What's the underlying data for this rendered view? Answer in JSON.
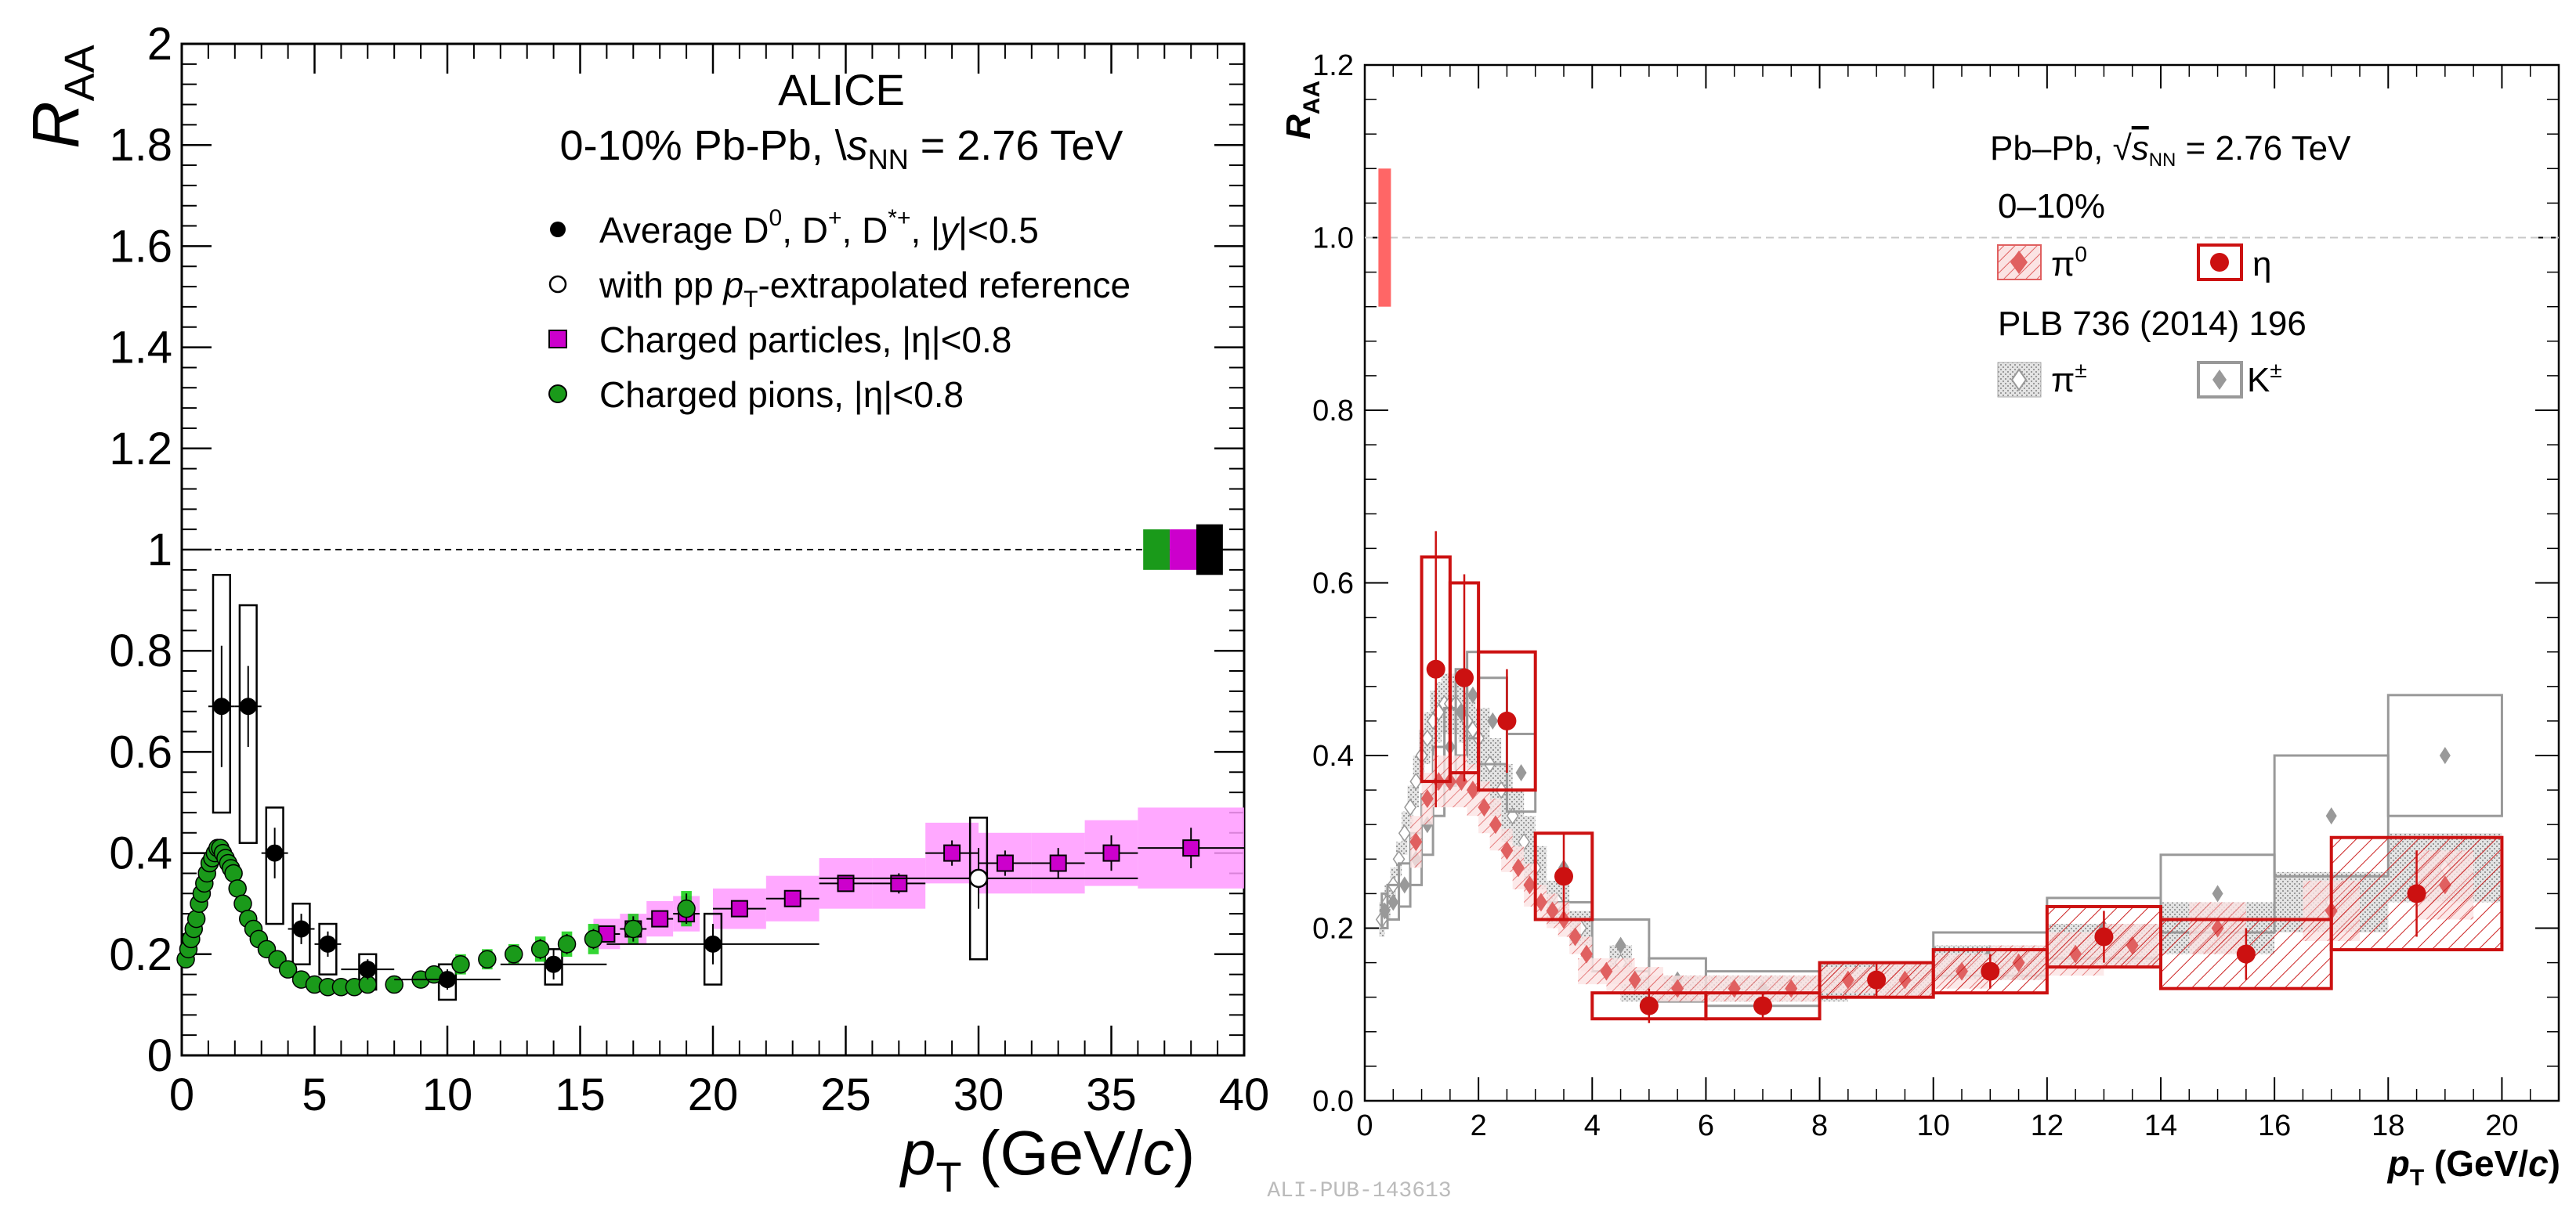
{
  "figure_label": "ALI-PUB-143613",
  "chart_data": [
    {
      "type": "scatter",
      "title": "ALICE",
      "subtitle_prefix": "0-10% Pb-Pb, ",
      "subtitle_energy": " = 2.76 TeV",
      "xlabel_unit": " (GeV/c)",
      "ylim": [
        0,
        2
      ],
      "xlim": [
        0,
        40
      ],
      "xticks": [
        0,
        5,
        10,
        15,
        20,
        25,
        30,
        35,
        40
      ],
      "yticks": [
        0,
        0.2,
        0.4,
        0.6,
        0.8,
        1,
        1.2,
        1.4,
        1.6,
        1.8,
        2
      ],
      "ytick_labels": [
        "0",
        "0.2",
        "0.4",
        "0.6",
        "0.8",
        "1",
        "1.2",
        "1.4",
        "1.6",
        "1.8",
        "2"
      ],
      "reference_line": 1,
      "legend_placement": "top-right",
      "legend": {
        "d_mesons": "Average D, D, D, |y|<0.5",
        "d_mesons_extrap": "with pp p-extrapolated reference",
        "charged_particles": "Charged particles, |η|<0.8",
        "charged_pions": "Charged pions, |η|<0.8"
      },
      "colors": {
        "d_mesons": "#000000",
        "charged_particles": "#cc00cc",
        "charged_particles_band": "#ff99ff",
        "charged_pions": "#1a9a1a",
        "charged_pions_box": "#00cc00"
      },
      "series": [
        {
          "name": "Average D0, D+, D*+, |y|<0.5",
          "x": [
            1.5,
            2.5,
            3.5,
            4.5,
            5.5,
            7,
            10,
            14,
            20
          ],
          "y": [
            0.69,
            0.69,
            0.4,
            0.25,
            0.22,
            0.17,
            0.15,
            0.18,
            0.22
          ],
          "xerr": [
            0.5,
            0.5,
            0.5,
            0.5,
            0.5,
            1,
            2,
            2,
            4
          ],
          "yerr": [
            0.12,
            0.08,
            0.05,
            0.03,
            0.025,
            0.02,
            0.02,
            0.03,
            0.04
          ],
          "syst_low": [
            0.48,
            0.42,
            0.26,
            0.18,
            0.16,
            0.13,
            0.11,
            0.14,
            0.14
          ],
          "syst_high": [
            0.95,
            0.89,
            0.49,
            0.3,
            0.26,
            0.2,
            0.18,
            0.21,
            0.28
          ]
        },
        {
          "name": "with pp pT-extrapolated reference",
          "x": [
            30
          ],
          "y": [
            0.35
          ],
          "xerr": [
            6
          ],
          "yerr": [
            0.06
          ],
          "syst_low": [
            0.19
          ],
          "syst_high": [
            0.47
          ]
        },
        {
          "name": "Charged particles, |η|<0.8",
          "x": [
            16,
            17,
            18,
            19,
            21,
            23,
            25,
            27,
            29,
            31,
            33,
            35,
            38
          ],
          "y": [
            0.24,
            0.25,
            0.27,
            0.28,
            0.29,
            0.31,
            0.34,
            0.34,
            0.4,
            0.38,
            0.38,
            0.4,
            0.41
          ],
          "xerr": [
            0.5,
            0.5,
            0.5,
            0.5,
            1,
            1,
            1,
            1,
            1,
            1,
            1,
            1,
            2
          ],
          "yerr": [
            0.01,
            0.01,
            0.01,
            0.01,
            0.01,
            0.015,
            0.015,
            0.02,
            0.025,
            0.025,
            0.03,
            0.035,
            0.04
          ],
          "band_halfwidth": [
            0.03,
            0.03,
            0.035,
            0.035,
            0.04,
            0.045,
            0.05,
            0.05,
            0.06,
            0.06,
            0.06,
            0.065,
            0.08
          ]
        },
        {
          "name": "Charged pions, |η|<0.8",
          "x": [
            0.15,
            0.25,
            0.35,
            0.45,
            0.55,
            0.65,
            0.75,
            0.85,
            0.95,
            1.05,
            1.15,
            1.25,
            1.35,
            1.45,
            1.55,
            1.65,
            1.75,
            1.85,
            1.95,
            2.1,
            2.3,
            2.5,
            2.7,
            2.9,
            3.2,
            3.6,
            4.0,
            4.5,
            5.0,
            5.5,
            6.0,
            6.5,
            7.0,
            8.0,
            9.0,
            9.5,
            10.5,
            11.5,
            12.5,
            13.5,
            14.5,
            15.5,
            17.0,
            19.0
          ],
          "y": [
            0.19,
            0.21,
            0.23,
            0.25,
            0.27,
            0.3,
            0.32,
            0.34,
            0.36,
            0.38,
            0.39,
            0.4,
            0.41,
            0.41,
            0.4,
            0.39,
            0.38,
            0.37,
            0.36,
            0.33,
            0.3,
            0.27,
            0.25,
            0.23,
            0.21,
            0.19,
            0.17,
            0.15,
            0.14,
            0.135,
            0.135,
            0.135,
            0.14,
            0.14,
            0.15,
            0.16,
            0.18,
            0.19,
            0.2,
            0.21,
            0.22,
            0.23,
            0.25,
            0.29
          ],
          "yerr": [
            0.005,
            0.005,
            0.005,
            0.005,
            0.005,
            0.005,
            0.005,
            0.005,
            0.005,
            0.005,
            0.005,
            0.005,
            0.005,
            0.005,
            0.005,
            0.005,
            0.005,
            0.005,
            0.005,
            0.005,
            0.005,
            0.005,
            0.005,
            0.005,
            0.005,
            0.005,
            0.005,
            0.005,
            0.005,
            0.005,
            0.005,
            0.005,
            0.005,
            0.01,
            0.01,
            0.01,
            0.015,
            0.015,
            0.015,
            0.02,
            0.02,
            0.02,
            0.025,
            0.03
          ],
          "syst_halfwidth": [
            0.01,
            0.01,
            0.01,
            0.01,
            0.012,
            0.012,
            0.013,
            0.013,
            0.014,
            0.014,
            0.015,
            0.015,
            0.015,
            0.015,
            0.015,
            0.015,
            0.015,
            0.015,
            0.014,
            0.013,
            0.012,
            0.011,
            0.01,
            0.01,
            0.01,
            0.01,
            0.01,
            0.01,
            0.01,
            0.01,
            0.01,
            0.01,
            0.01,
            0.015,
            0.015,
            0.015,
            0.02,
            0.02,
            0.02,
            0.025,
            0.025,
            0.03,
            0.03,
            0.035
          ]
        }
      ],
      "normalization_boxes": [
        {
          "color": "#1a9a1a",
          "halfheight": 0.04
        },
        {
          "color": "#cc00cc",
          "halfheight": 0.04
        },
        {
          "color": "#000000",
          "halfheight": 0.05
        }
      ]
    },
    {
      "type": "scatter",
      "xlabel_unit": " (GeV/",
      "xlim": [
        0,
        21
      ],
      "ylim": [
        0,
        1.2
      ],
      "xticks": [
        0,
        2,
        4,
        6,
        8,
        10,
        12,
        14,
        16,
        18,
        20
      ],
      "yticks": [
        0,
        0.2,
        0.4,
        0.6,
        0.8,
        1.0,
        1.2
      ],
      "ytick_labels": [
        "0.0",
        "0.2",
        "0.4",
        "0.6",
        "0.8",
        "1.0",
        "1.2"
      ],
      "reference_line": 1.0,
      "legend_placement": "top-right",
      "legend": {
        "system_prefix": "Pb–Pb, ",
        "system_energy": " = 2.76 TeV",
        "centrality": "0–10%",
        "pi0": "π",
        "eta": "η",
        "reference": "PLB 736 (2014) 196",
        "pipm": "π",
        "kpm": "K"
      },
      "colors": {
        "eta": "#cc1111",
        "pi0": "#e06060",
        "reference": "#999999",
        "norm": "#ff6666"
      },
      "normalization_box": {
        "x": 0.35,
        "low": 0.92,
        "high": 1.08
      },
      "series": [
        {
          "name": "η",
          "x": [
            1.25,
            1.75,
            2.5,
            3.5,
            5,
            7,
            9,
            11,
            13,
            15.5,
            18.5
          ],
          "y": [
            0.5,
            0.49,
            0.44,
            0.26,
            0.11,
            0.11,
            0.14,
            0.15,
            0.19,
            0.17,
            0.24
          ],
          "xerr": [
            0.25,
            0.25,
            0.5,
            0.5,
            1,
            1,
            1,
            1,
            1,
            1.5,
            1.5
          ],
          "yerr": [
            0.16,
            0.12,
            0.06,
            0.05,
            0.02,
            0.015,
            0.02,
            0.02,
            0.03,
            0.03,
            0.05
          ],
          "syst_halfwidth": [
            0.13,
            0.11,
            0.08,
            0.05,
            0.015,
            0.015,
            0.02,
            0.025,
            0.035,
            0.04,
            0.065
          ]
        },
        {
          "name": "π0",
          "x": [
            0.9,
            1.1,
            1.3,
            1.5,
            1.7,
            1.9,
            2.1,
            2.3,
            2.5,
            2.7,
            2.9,
            3.1,
            3.3,
            3.5,
            3.7,
            3.9,
            4.25,
            4.75,
            5.5,
            6.5,
            7.5,
            8.5,
            9.5,
            10.5,
            11.5,
            12.5,
            13.5,
            15,
            17,
            19
          ],
          "y": [
            0.3,
            0.35,
            0.37,
            0.37,
            0.37,
            0.36,
            0.34,
            0.32,
            0.29,
            0.27,
            0.25,
            0.23,
            0.22,
            0.21,
            0.19,
            0.17,
            0.15,
            0.14,
            0.13,
            0.13,
            0.13,
            0.14,
            0.14,
            0.15,
            0.16,
            0.17,
            0.18,
            0.2,
            0.22,
            0.25
          ],
          "syst_halfwidth": [
            0.03,
            0.03,
            0.03,
            0.03,
            0.03,
            0.03,
            0.03,
            0.03,
            0.025,
            0.025,
            0.025,
            0.02,
            0.02,
            0.02,
            0.02,
            0.02,
            0.015,
            0.015,
            0.015,
            0.015,
            0.015,
            0.015,
            0.02,
            0.02,
            0.02,
            0.025,
            0.025,
            0.03,
            0.035,
            0.04
          ]
        },
        {
          "name": "π±",
          "x": [
            0.3,
            0.4,
            0.5,
            0.6,
            0.7,
            0.8,
            0.9,
            1.0,
            1.1,
            1.2,
            1.3,
            1.4,
            1.5,
            1.6,
            1.7,
            1.8,
            1.9,
            2.0,
            2.2,
            2.4,
            2.6,
            2.8,
            3.0,
            3.4,
            3.8,
            4.5,
            5.5,
            6.5,
            7.5,
            9,
            11,
            13,
            15,
            17,
            19
          ],
          "y": [
            0.21,
            0.23,
            0.25,
            0.28,
            0.31,
            0.34,
            0.37,
            0.4,
            0.42,
            0.44,
            0.45,
            0.46,
            0.46,
            0.46,
            0.45,
            0.44,
            0.43,
            0.42,
            0.39,
            0.36,
            0.33,
            0.3,
            0.27,
            0.23,
            0.2,
            0.16,
            0.13,
            0.13,
            0.13,
            0.14,
            0.16,
            0.18,
            0.2,
            0.23,
            0.27
          ],
          "syst_halfwidth": [
            0.02,
            0.02,
            0.02,
            0.02,
            0.025,
            0.025,
            0.03,
            0.03,
            0.03,
            0.035,
            0.035,
            0.035,
            0.035,
            0.035,
            0.035,
            0.035,
            0.035,
            0.035,
            0.03,
            0.03,
            0.03,
            0.03,
            0.025,
            0.025,
            0.02,
            0.02,
            0.015,
            0.015,
            0.015,
            0.02,
            0.02,
            0.025,
            0.03,
            0.035,
            0.04
          ]
        },
        {
          "name": "K±",
          "x": [
            0.35,
            0.5,
            0.7,
            0.9,
            1.1,
            1.3,
            1.5,
            1.7,
            1.9,
            2.25,
            2.75,
            3.5,
            4.5,
            5.5,
            7,
            9,
            11,
            13,
            15,
            17,
            19
          ],
          "y": [
            0.22,
            0.23,
            0.25,
            0.28,
            0.32,
            0.37,
            0.41,
            0.45,
            0.47,
            0.44,
            0.38,
            0.27,
            0.18,
            0.14,
            0.13,
            0.14,
            0.17,
            0.2,
            0.24,
            0.33,
            0.4
          ],
          "xerr": [
            0.05,
            0.1,
            0.1,
            0.1,
            0.1,
            0.1,
            0.1,
            0.1,
            0.1,
            0.25,
            0.25,
            0.5,
            0.5,
            0.5,
            1,
            1,
            1,
            1,
            1,
            1,
            1
          ],
          "syst_halfwidth": [
            0.02,
            0.02,
            0.025,
            0.03,
            0.035,
            0.04,
            0.045,
            0.05,
            0.05,
            0.05,
            0.045,
            0.04,
            0.03,
            0.025,
            0.02,
            0.02,
            0.025,
            0.035,
            0.045,
            0.07,
            0.07
          ]
        }
      ]
    }
  ]
}
